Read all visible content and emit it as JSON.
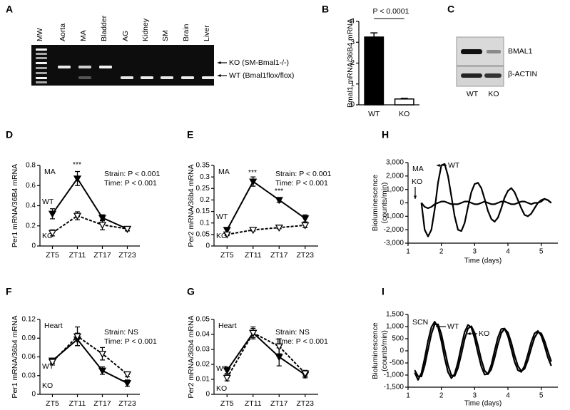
{
  "gels": [
    {
      "panel": "A",
      "lanes": [
        "MW",
        "Aorta",
        "MA",
        "Bladder",
        "AG",
        "Kidney",
        "SM",
        "Brain",
        "Liver"
      ],
      "bands": [
        "KO (SM-Bmal1-/-)",
        "WT (Bmal1flox/flox)"
      ]
    },
    {
      "panel": "C",
      "proteins": [
        "BMAL1",
        "β-ACTIN"
      ],
      "lanes": [
        "WT",
        "KO"
      ]
    }
  ],
  "chart_data": [
    {
      "type": "bar",
      "panel": "B",
      "ylabel": "Bmal1 mRNA/36B4 mRNA",
      "categories": [
        "WT",
        "KO"
      ],
      "values": [
        3.25,
        0.28
      ],
      "errors": [
        0.2,
        0.03
      ],
      "colors": [
        "#000000",
        "#ffffff"
      ],
      "ylim": [
        0,
        4
      ],
      "yticks": [
        0,
        1,
        2,
        3,
        4
      ],
      "annotations": [
        "P < 0.0001"
      ]
    },
    {
      "type": "line",
      "panel": "D",
      "ylabel": "Per1 mRNA/36B4 mRNA",
      "categories": [
        "ZT5",
        "ZT11",
        "ZT17",
        "ZT23"
      ],
      "ylim": [
        0,
        0.8
      ],
      "yticks": [
        0,
        0.2,
        0.4,
        0.6,
        0.8
      ],
      "annotations": [
        "MA",
        "***",
        "Strain: P < 0.001",
        "Time: P < 0.001"
      ],
      "series": [
        {
          "name": "WT",
          "color": "#000000",
          "line": "solid",
          "marker": "filled",
          "values": [
            0.32,
            0.67,
            0.28,
            0.17
          ],
          "errors": [
            0.05,
            0.07,
            0.03,
            0.02
          ]
        },
        {
          "name": "KO",
          "color": "#000000",
          "line": "dashed",
          "marker": "open",
          "values": [
            0.13,
            0.3,
            0.21,
            0.17
          ],
          "errors": [
            0.03,
            0.04,
            0.05,
            0.02
          ]
        }
      ]
    },
    {
      "type": "line",
      "panel": "E",
      "ylabel": "Per2 mRNA/36b4 mRNA",
      "categories": [
        "ZT5",
        "ZT11",
        "ZT17",
        "ZT23"
      ],
      "ylim": [
        0,
        0.35
      ],
      "yticks": [
        0,
        0.05,
        0.1,
        0.15,
        0.2,
        0.25,
        0.3,
        0.35
      ],
      "annotations": [
        "MA",
        "***",
        "***",
        "Strain: P < 0.001",
        "Time: P < 0.001"
      ],
      "series": [
        {
          "name": "WT",
          "color": "#000000",
          "line": "solid",
          "marker": "filled",
          "values": [
            0.07,
            0.28,
            0.2,
            0.12
          ],
          "errors": [
            0.01,
            0.02,
            0.01,
            0.015
          ]
        },
        {
          "name": "KO",
          "color": "#000000",
          "line": "dashed",
          "marker": "open",
          "values": [
            0.05,
            0.07,
            0.08,
            0.09
          ],
          "errors": [
            0.005,
            0.005,
            0.005,
            0.01
          ]
        }
      ]
    },
    {
      "type": "line",
      "panel": "F",
      "ylabel": "Per1 mRNA/36b4 mRNA",
      "categories": [
        "ZT5",
        "ZT11",
        "ZT17",
        "ZT23"
      ],
      "ylim": [
        0,
        0.12
      ],
      "yticks": [
        0,
        0.03,
        0.06,
        0.09,
        0.12
      ],
      "annotations": [
        "Heart",
        "Strain: NS",
        "Time: P < 0.001"
      ],
      "series": [
        {
          "name": "WT",
          "color": "#000000",
          "line": "solid",
          "marker": "filled",
          "values": [
            0.054,
            0.088,
            0.038,
            0.018
          ],
          "errors": [
            0.004,
            0.01,
            0.006,
            0.005
          ]
        },
        {
          "name": "KO",
          "color": "#000000",
          "line": "dashed",
          "marker": "open",
          "values": [
            0.052,
            0.093,
            0.065,
            0.032
          ],
          "errors": [
            0.005,
            0.015,
            0.01,
            0.004
          ]
        }
      ]
    },
    {
      "type": "line",
      "panel": "G",
      "ylabel": "Per2 mRNA/36b4 mRNA",
      "categories": [
        "ZT5",
        "ZT11",
        "ZT17",
        "ZT23"
      ],
      "ylim": [
        0,
        0.05
      ],
      "yticks": [
        0,
        0.01,
        0.02,
        0.03,
        0.04,
        0.05
      ],
      "annotations": [
        "Heart",
        "Strain: NS",
        "Time: P < 0.001"
      ],
      "series": [
        {
          "name": "WT",
          "color": "#000000",
          "line": "solid",
          "marker": "filled",
          "values": [
            0.016,
            0.041,
            0.025,
            0.013
          ],
          "errors": [
            0.002,
            0.004,
            0.006,
            0.002
          ]
        },
        {
          "name": "KO",
          "color": "#000000",
          "line": "dashed",
          "marker": "open",
          "values": [
            0.011,
            0.041,
            0.032,
            0.014
          ],
          "errors": [
            0.002,
            0.003,
            0.005,
            0.002
          ]
        }
      ]
    },
    {
      "type": "line",
      "panel": "H",
      "ylabel": [
        "Bioluminescence",
        "(counts/min)"
      ],
      "xlabel": "Time (days)",
      "annotations": [
        "MA"
      ],
      "xlim": [
        1,
        5.5
      ],
      "xticks": [
        1,
        2,
        3,
        4,
        5
      ],
      "ylim": [
        -3000,
        3000
      ],
      "yticks": [
        {
          "value": -3000,
          "label": "-3,000"
        },
        {
          "value": -2000,
          "label": "-2,000"
        },
        {
          "value": -1000,
          "label": "-1,000"
        },
        0,
        {
          "value": 1000,
          "label": "1,000"
        },
        {
          "value": 2000,
          "label": "2,000"
        },
        {
          "value": 3000,
          "label": "3,000"
        }
      ],
      "x": [
        1.4,
        1.5,
        1.6,
        1.7,
        1.8,
        1.9,
        2.0,
        2.1,
        2.2,
        2.3,
        2.4,
        2.5,
        2.6,
        2.7,
        2.8,
        2.9,
        3.0,
        3.1,
        3.2,
        3.3,
        3.4,
        3.5,
        3.6,
        3.7,
        3.8,
        3.9,
        4.0,
        4.1,
        4.2,
        4.3,
        4.4,
        4.5,
        4.6,
        4.7,
        4.8,
        4.9,
        5.0,
        5.1,
        5.2,
        5.3
      ],
      "series": [
        {
          "name": "WT",
          "color": "#000000",
          "values": [
            0,
            -2000,
            -2500,
            -2000,
            -500,
            1500,
            2800,
            2900,
            2000,
            500,
            -1000,
            -2000,
            -2100,
            -1500,
            -300,
            800,
            1400,
            1500,
            1100,
            300,
            -600,
            -1200,
            -1400,
            -1100,
            -400,
            400,
            900,
            1100,
            800,
            200,
            -400,
            -900,
            -1000,
            -800,
            -400,
            0,
            200,
            300,
            200,
            0
          ]
        },
        {
          "name": "KO",
          "color": "#000000",
          "values": [
            0,
            -300,
            -400,
            -300,
            -100,
            0,
            100,
            100,
            0,
            -100,
            -100,
            -100,
            0,
            100,
            100,
            0,
            -100,
            -100,
            0,
            100,
            0,
            -100,
            -100,
            0,
            100,
            100,
            0,
            -100,
            -100,
            0,
            100,
            100,
            0,
            -100,
            0,
            0,
            100,
            300,
            200,
            0
          ]
        }
      ]
    },
    {
      "type": "line",
      "panel": "I",
      "ylabel": [
        "Bioluminescence",
        "(counts/min)"
      ],
      "xlabel": "Time (days)",
      "annotations": [
        "SCN"
      ],
      "xlim": [
        1,
        5.5
      ],
      "xticks": [
        1,
        2,
        3,
        4,
        5
      ],
      "ylim": [
        -1500,
        1500
      ],
      "yticks": [
        {
          "value": -1500,
          "label": "-1,500"
        },
        {
          "value": -1000,
          "label": "-1,000"
        },
        {
          "value": -500,
          "label": "-500"
        },
        0,
        500,
        {
          "value": 1000,
          "label": "1,000"
        },
        {
          "value": 1500,
          "label": "1,500"
        }
      ],
      "x": [
        1.2,
        1.3,
        1.4,
        1.5,
        1.6,
        1.7,
        1.8,
        1.9,
        2.0,
        2.1,
        2.2,
        2.3,
        2.4,
        2.5,
        2.6,
        2.7,
        2.8,
        2.9,
        3.0,
        3.1,
        3.2,
        3.3,
        3.4,
        3.5,
        3.6,
        3.7,
        3.8,
        3.9,
        4.0,
        4.1,
        4.2,
        4.3,
        4.4,
        4.5,
        4.6,
        4.7,
        4.8,
        4.9,
        5.0,
        5.1,
        5.2,
        5.3
      ],
      "series": [
        {
          "name": "WT",
          "color": "#000000",
          "values": [
            -900,
            -1200,
            -920,
            -310,
            410,
            980,
            1200,
            980,
            400,
            -300,
            -880,
            -1130,
            -960,
            -460,
            190,
            770,
            1070,
            960,
            520,
            -90,
            -650,
            -980,
            -950,
            -580,
            0,
            560,
            900,
            920,
            600,
            80,
            -450,
            -800,
            -870,
            -620,
            -150,
            360,
            720,
            820,
            620,
            210,
            -270,
            -620
          ]
        },
        {
          "name": "KO",
          "color": "#000000",
          "values": [
            -800,
            -1050,
            -1060,
            -615,
            50,
            695,
            1090,
            1090,
            690,
            50,
            -590,
            -1005,
            -1045,
            -710,
            -135,
            480,
            920,
            1015,
            740,
            215,
            -370,
            -815,
            -965,
            -765,
            -290,
            280,
            730,
            910,
            760,
            340,
            -185,
            -625,
            -835,
            -745,
            -385,
            105,
            540,
            770,
            720,
            415,
            -30,
            -445
          ]
        }
      ]
    }
  ]
}
